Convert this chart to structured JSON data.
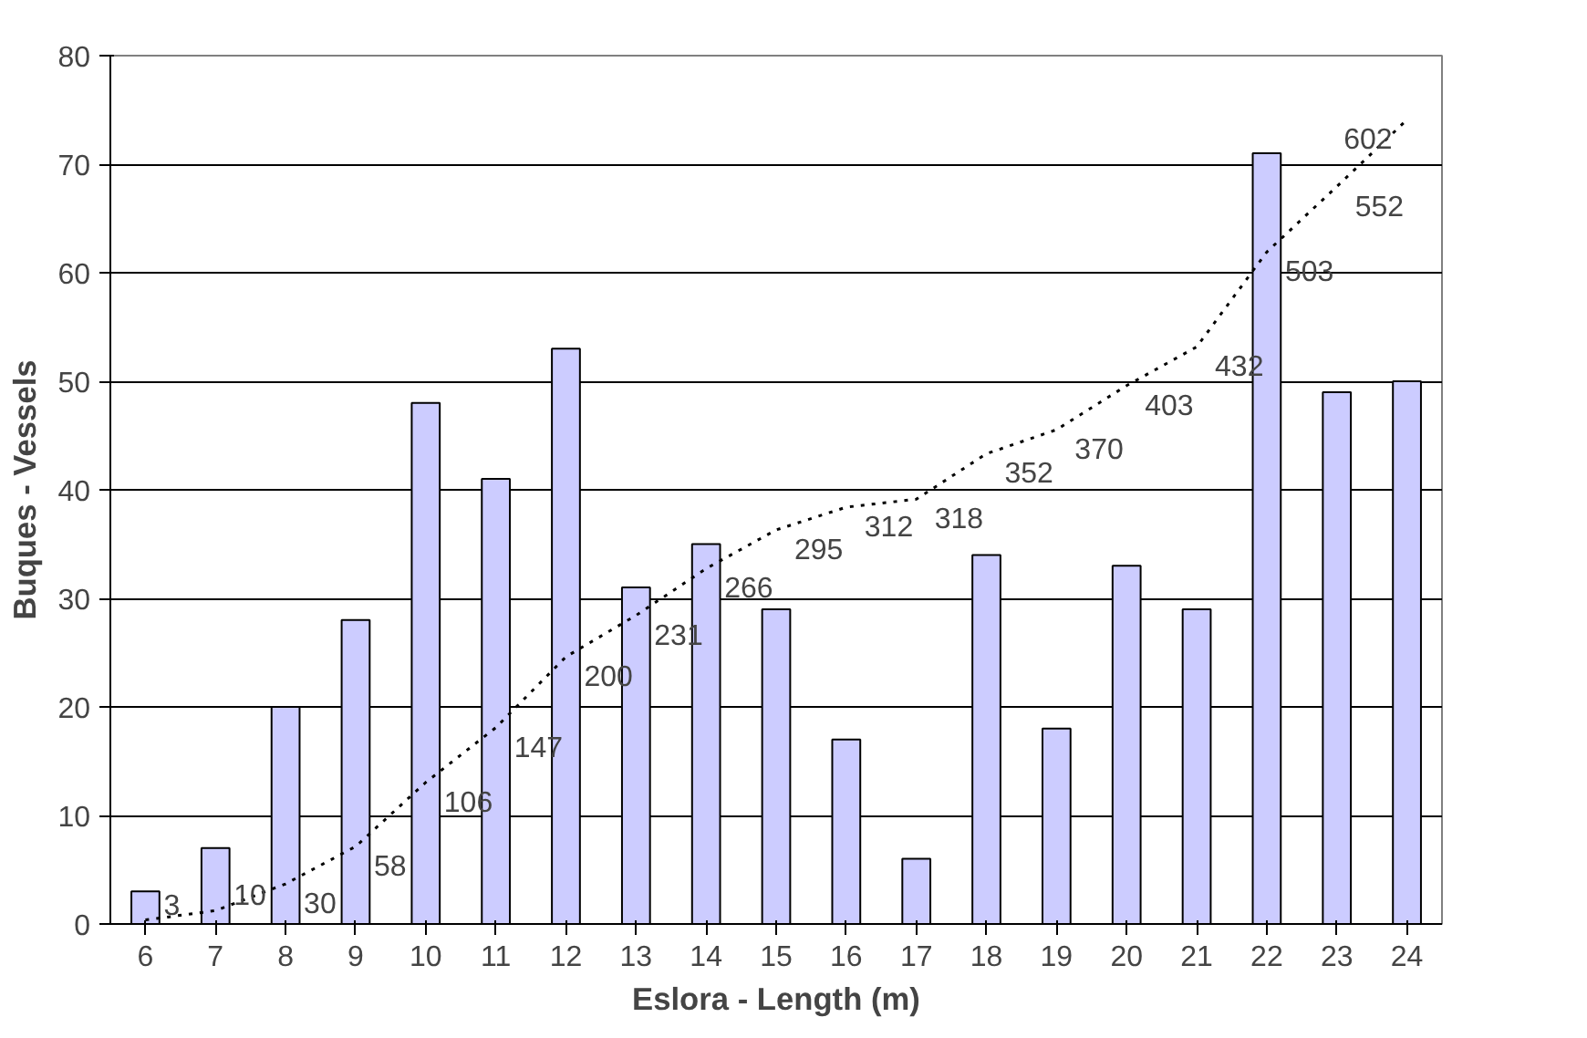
{
  "chart_data": {
    "type": "bar",
    "xlabel": "Eslora - Length (m)",
    "ylabel": "Buques - Vessels",
    "categories": [
      "6",
      "7",
      "8",
      "9",
      "10",
      "11",
      "12",
      "13",
      "14",
      "15",
      "16",
      "17",
      "18",
      "19",
      "20",
      "21",
      "22",
      "23",
      "24"
    ],
    "series": [
      {
        "color": "#ccccff",
        "values": [
          3,
          7,
          20,
          28,
          48,
          41,
          53,
          31,
          35,
          29,
          17,
          6,
          34,
          18,
          33,
          29,
          71,
          49,
          50
        ]
      },
      {
        "type": "line",
        "axis": "y2",
        "color": "#000000",
        "line_style": "dotted",
        "marker": "none",
        "data_labels": true,
        "values": [
          3,
          10,
          30,
          58,
          106,
          147,
          200,
          231,
          266,
          295,
          312,
          318,
          352,
          370,
          403,
          432,
          503,
          552,
          602
        ]
      }
    ],
    "ylim": [
      0,
      80
    ],
    "yticks": [
      0,
      10,
      20,
      30,
      40,
      50,
      60,
      70,
      80
    ],
    "y2lim": [
      0,
      650
    ],
    "grid": "y",
    "legend": false
  }
}
